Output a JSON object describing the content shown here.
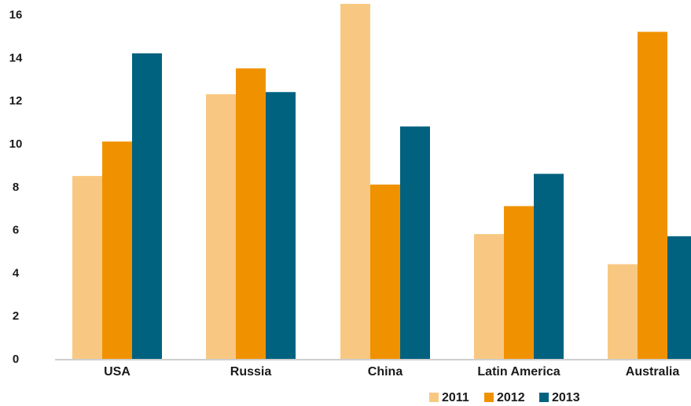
{
  "chart_data": {
    "type": "bar",
    "title": "",
    "xlabel": "",
    "ylabel": "",
    "categories": [
      "USA",
      "Russia",
      "China",
      "Latin America",
      "Australia"
    ],
    "series": [
      {
        "name": "2011",
        "color": "#f8c882",
        "values": [
          8.5,
          12.3,
          16.5,
          5.8,
          4.4
        ]
      },
      {
        "name": "2012",
        "color": "#f09200",
        "values": [
          10.1,
          13.5,
          8.1,
          7.1,
          15.2
        ]
      },
      {
        "name": "2013",
        "color": "#00627f",
        "values": [
          14.2,
          12.4,
          10.8,
          8.6,
          5.7
        ]
      }
    ],
    "y_ticks": [
      "0",
      "2",
      "4",
      "6",
      "8",
      "10",
      "12",
      "14",
      "16"
    ],
    "ylim": [
      0,
      16.5
    ],
    "grid": false,
    "legend_position": "bottom-right"
  }
}
